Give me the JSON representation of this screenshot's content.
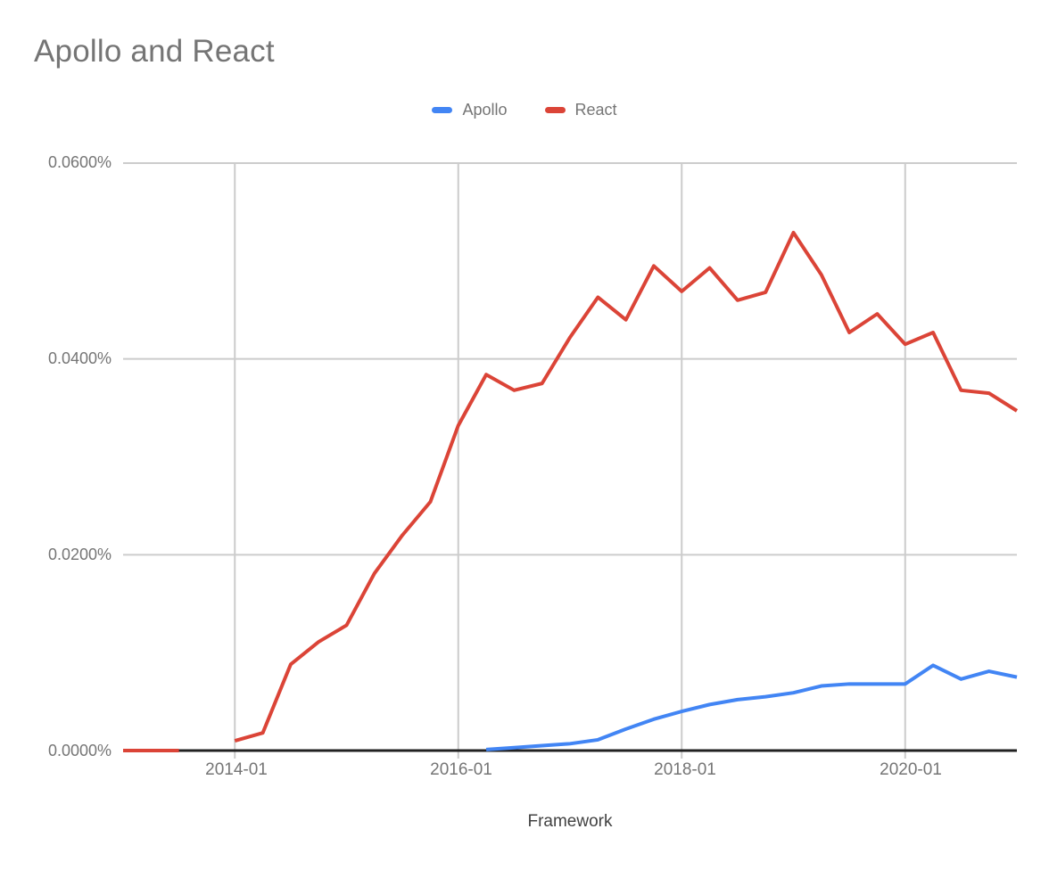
{
  "chart_data": {
    "type": "line",
    "title": "Apollo and React",
    "xlabel": "Framework",
    "ylabel": "",
    "grid": true,
    "legend_position": "top-center",
    "background_color": "#ffffff",
    "gridline_color": "#cccccc",
    "axis_line_color": "#212121",
    "ylim": [
      0,
      0.06
    ],
    "y_unit": "percent",
    "categories": [
      "2013-01",
      "2013-04",
      "2013-07",
      "2013-10",
      "2014-01",
      "2014-04",
      "2014-07",
      "2014-10",
      "2015-01",
      "2015-04",
      "2015-07",
      "2015-10",
      "2016-01",
      "2016-04",
      "2016-07",
      "2016-10",
      "2017-01",
      "2017-04",
      "2017-07",
      "2017-10",
      "2018-01",
      "2018-04",
      "2018-07",
      "2018-10",
      "2019-01",
      "2019-04",
      "2019-07",
      "2019-10",
      "2020-01",
      "2020-04",
      "2020-07",
      "2020-10",
      "2021-01"
    ],
    "series": [
      {
        "name": "Apollo",
        "color": "#4285F4",
        "values": [
          null,
          null,
          null,
          null,
          null,
          null,
          null,
          null,
          null,
          null,
          null,
          null,
          null,
          0.0001,
          0.0003,
          0.0005,
          0.0007,
          0.0011,
          0.0022,
          0.0032,
          0.004,
          0.0047,
          0.0052,
          0.0055,
          0.0059,
          0.0066,
          0.0068,
          0.0068,
          0.0068,
          0.0087,
          0.0073,
          0.0081,
          0.0075
        ]
      },
      {
        "name": "React",
        "color": "#DB4437",
        "values": [
          0.0,
          0.0,
          0.0,
          null,
          0.001,
          0.0018,
          0.0088,
          0.0111,
          0.0128,
          0.0181,
          0.022,
          0.0254,
          0.0332,
          0.0384,
          0.0368,
          0.0375,
          0.0422,
          0.0463,
          0.044,
          0.0495,
          0.0469,
          0.0493,
          0.046,
          0.0468,
          0.0529,
          0.0486,
          0.0427,
          0.0446,
          0.0415,
          0.0427,
          0.0368,
          0.0365,
          0.0347
        ]
      }
    ],
    "y_ticks": [
      {
        "value": 0.0,
        "label": "0.0000%"
      },
      {
        "value": 0.02,
        "label": "0.0200%"
      },
      {
        "value": 0.04,
        "label": "0.0400%"
      },
      {
        "value": 0.06,
        "label": "0.0600%"
      }
    ],
    "x_ticks": [
      {
        "index": 4,
        "label": "2014-01"
      },
      {
        "index": 12,
        "label": "2016-01"
      },
      {
        "index": 20,
        "label": "2018-01"
      },
      {
        "index": 28,
        "label": "2020-01"
      }
    ]
  }
}
